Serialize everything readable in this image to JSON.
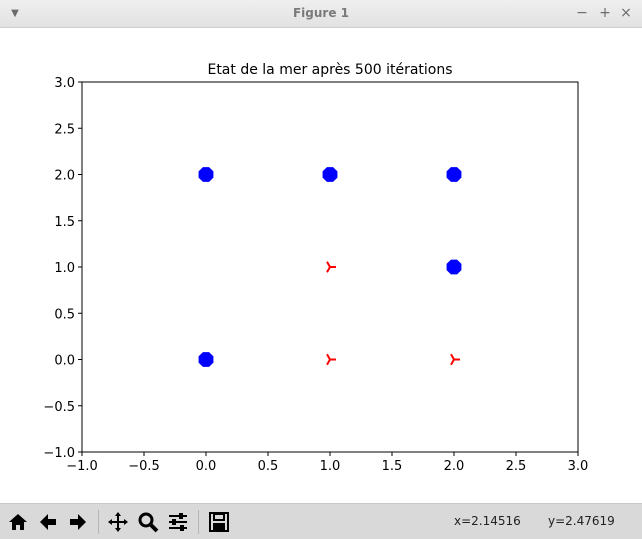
{
  "window": {
    "title": "Figure 1",
    "controls": {
      "minimize": "−",
      "maximize": "+",
      "close": "×"
    }
  },
  "toolbar": {
    "buttons": [
      "home-icon",
      "back-arrow-icon",
      "forward-arrow-icon",
      "pan-icon",
      "zoom-icon",
      "configure-subplots-icon",
      "save-icon"
    ],
    "coord_x": "x=2.14516",
    "coord_y": "y=2.47619"
  },
  "chart_data": {
    "type": "scatter",
    "title": "Etat de la mer après 500 itérations",
    "xlim": [
      -1.0,
      3.0
    ],
    "ylim": [
      -1.0,
      3.0
    ],
    "x_ticks": [
      "−1.0",
      "−0.5",
      "0.0",
      "0.5",
      "1.0",
      "1.5",
      "2.0",
      "2.5",
      "3.0"
    ],
    "y_ticks": [
      "−1.0",
      "−0.5",
      "0.0",
      "0.5",
      "1.0",
      "1.5",
      "2.0",
      "2.5",
      "3.0"
    ],
    "grid": false,
    "series": [
      {
        "marker": "octagon",
        "color": "#0000ff",
        "points": [
          [
            0,
            2
          ],
          [
            1,
            2
          ],
          [
            2,
            2
          ],
          [
            2,
            1
          ],
          [
            0,
            0
          ]
        ]
      },
      {
        "marker": "tri_right",
        "color": "#ff0000",
        "points": [
          [
            1,
            1
          ],
          [
            1,
            0
          ],
          [
            2,
            0
          ]
        ]
      }
    ]
  }
}
